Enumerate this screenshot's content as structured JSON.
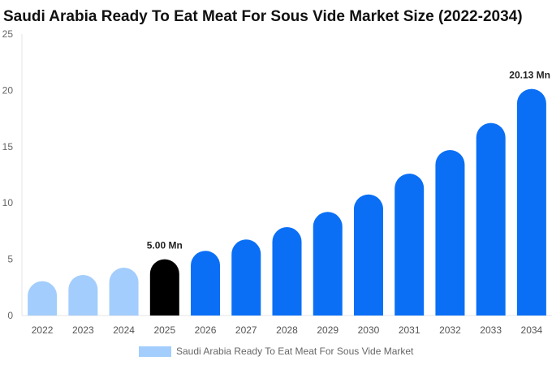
{
  "title": "Saudi Arabia Ready To Eat Meat For Sous Vide Market Size (2022-2034)",
  "colors": {
    "historical": "#a3cdfc",
    "current": "#000000",
    "forecast": "#0a6ff5",
    "legend": "#a3cdfc"
  },
  "chart_data": {
    "type": "bar",
    "title": "Saudi Arabia Ready To Eat Meat For Sous Vide Market Size (2022-2034)",
    "categories": [
      "2022",
      "2023",
      "2024",
      "2025",
      "2026",
      "2027",
      "2028",
      "2029",
      "2030",
      "2031",
      "2032",
      "2033",
      "2034"
    ],
    "series": [
      {
        "name": "Saudi Arabia Ready To Eat Meat For Sous Vide Market",
        "values": [
          3.05,
          3.6,
          4.25,
          5.0,
          5.75,
          6.75,
          7.85,
          9.2,
          10.75,
          12.6,
          14.7,
          17.1,
          20.13
        ]
      }
    ],
    "bar_colors": [
      "historical",
      "historical",
      "historical",
      "current",
      "forecast",
      "forecast",
      "forecast",
      "forecast",
      "forecast",
      "forecast",
      "forecast",
      "forecast",
      "forecast"
    ],
    "ylim": [
      0,
      25
    ],
    "yticks": [
      "0",
      "5",
      "10",
      "15",
      "20",
      "25"
    ],
    "data_labels": [
      {
        "category": "2025",
        "text": "5.00 Mn"
      },
      {
        "category": "2034",
        "text": "20.13 Mn"
      }
    ],
    "legend": {
      "label": "Saudi Arabia Ready To Eat Meat For Sous Vide Market",
      "position": "bottom"
    },
    "xlabel": "",
    "ylabel": ""
  }
}
